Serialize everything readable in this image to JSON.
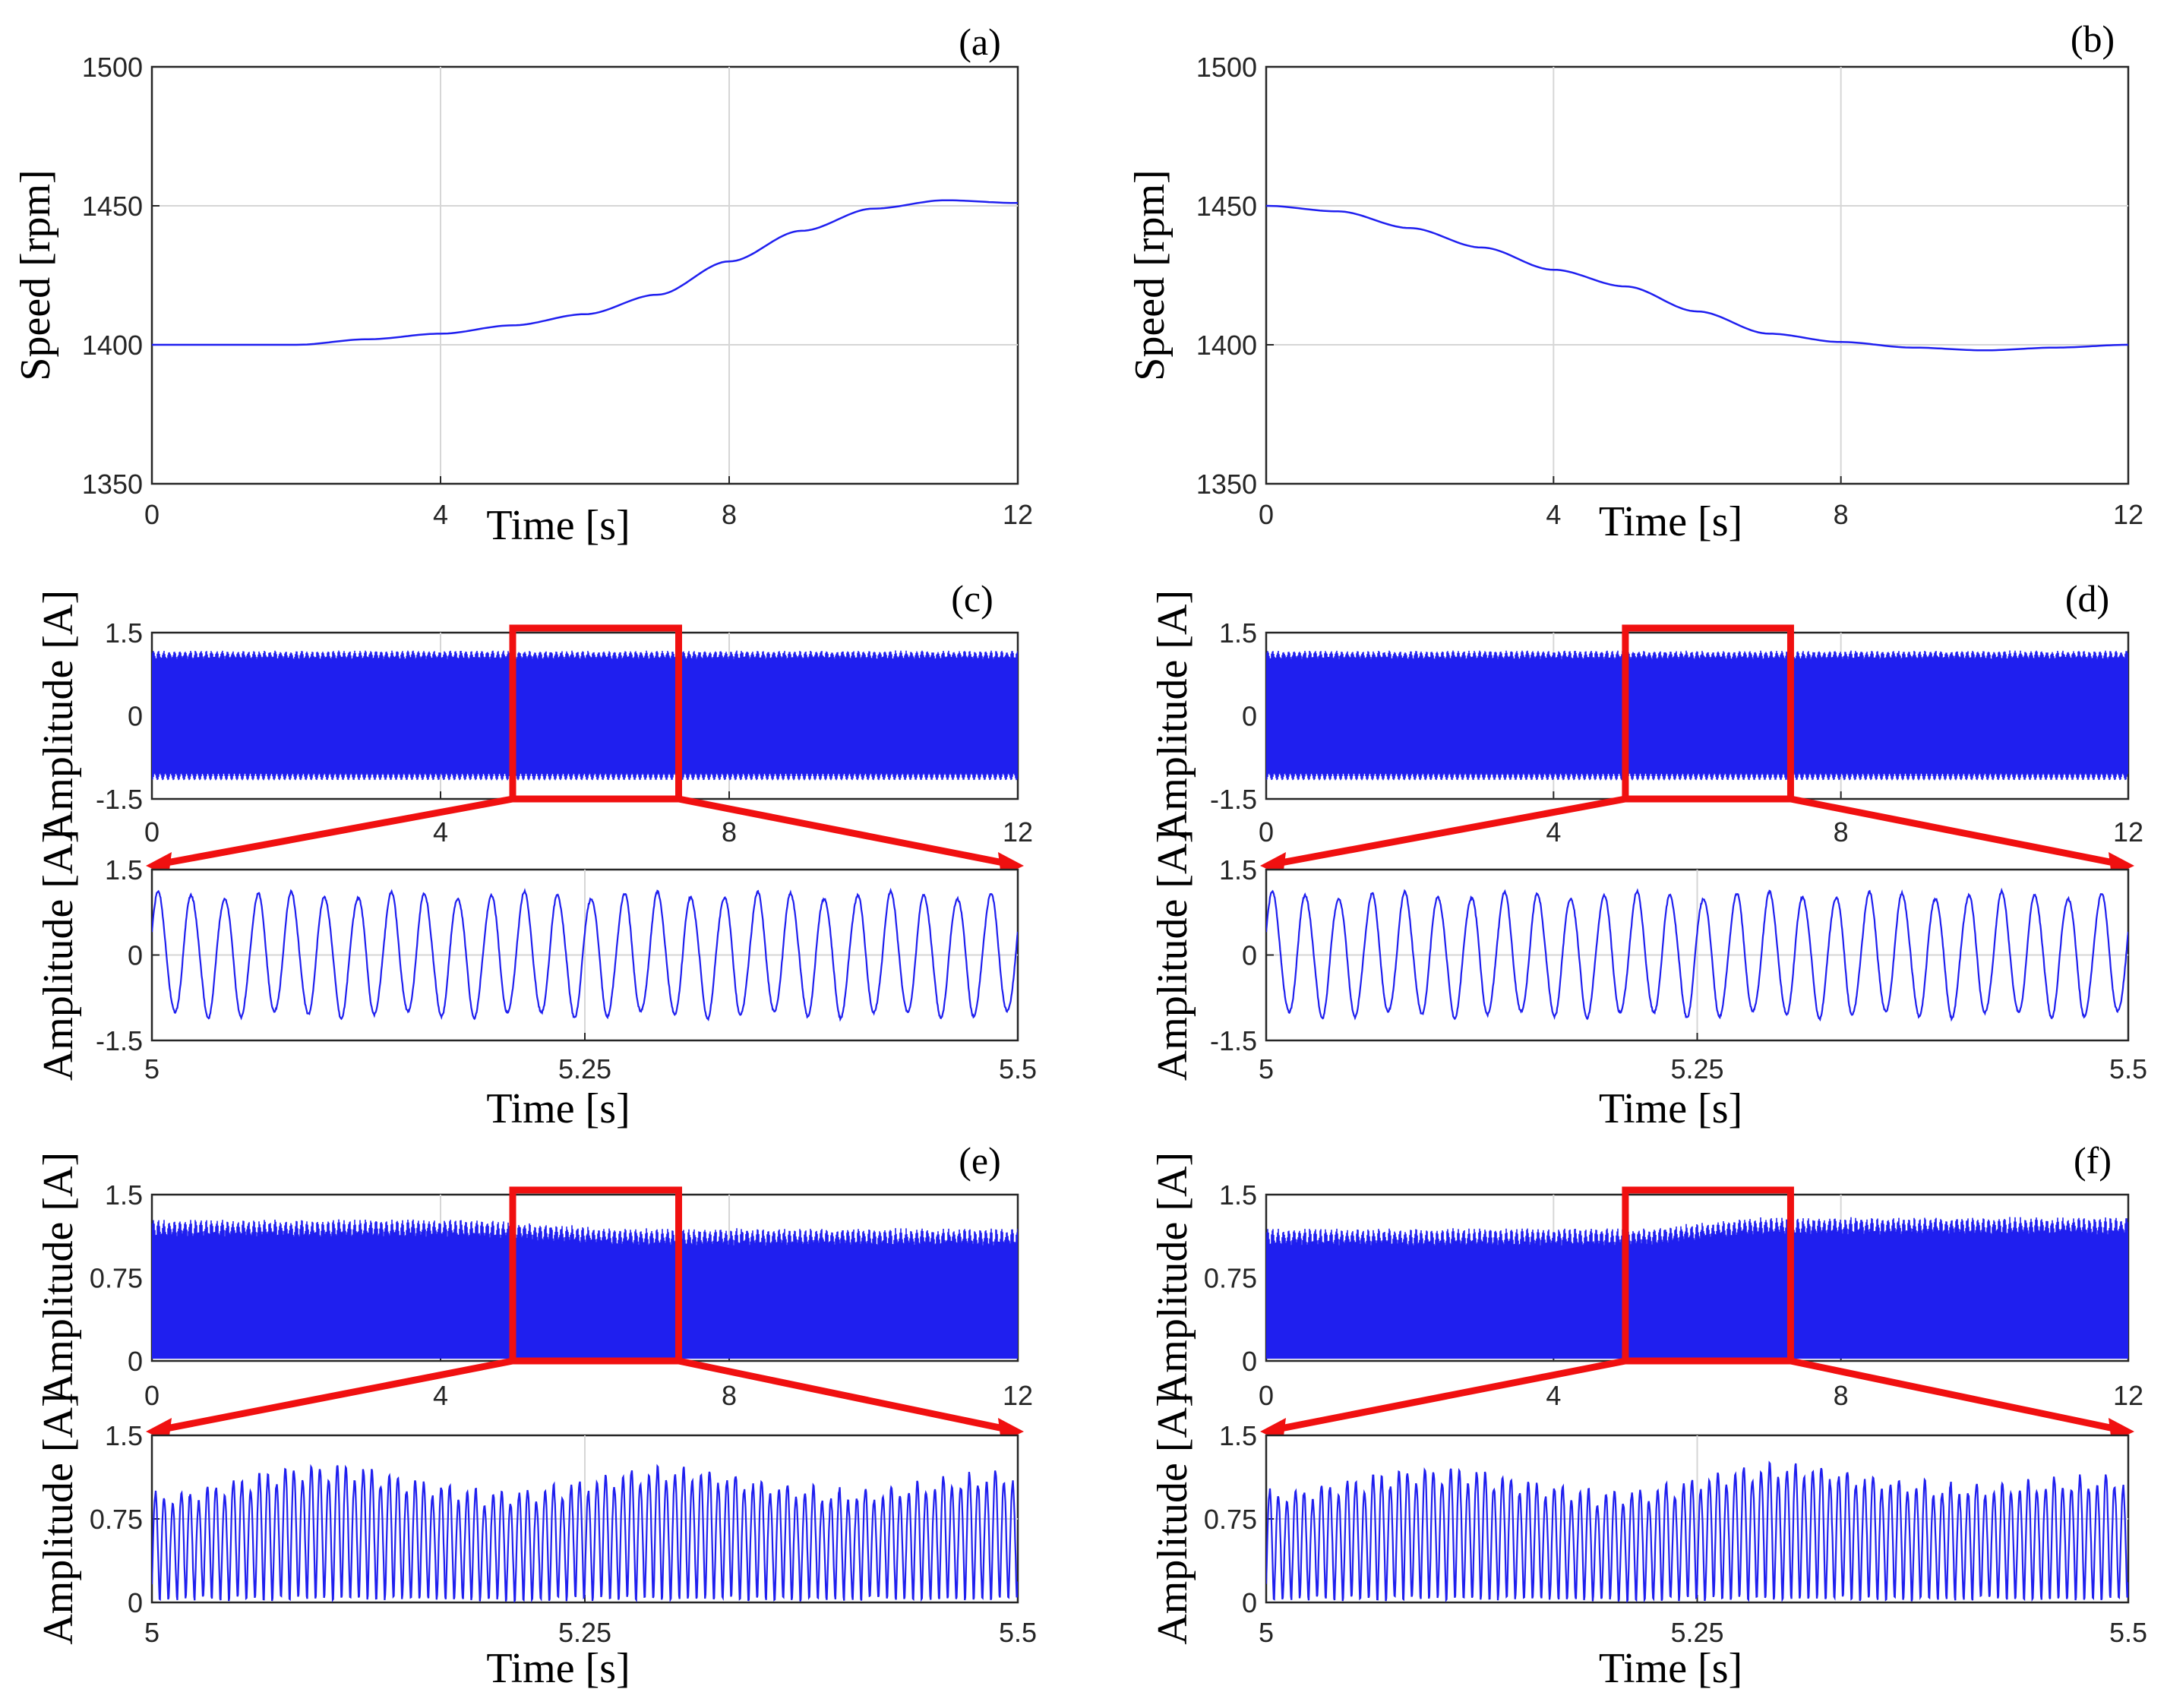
{
  "colors": {
    "series": "#1f1fef",
    "zoom": "#f01010",
    "grid": "#d6d6d6",
    "axis": "#262626"
  },
  "chart_data": [
    {
      "panel": "(a)",
      "type": "line",
      "xlabel": "Time [s]",
      "ylabel": "Speed [rpm]",
      "xlim": [
        0,
        12
      ],
      "ylim": [
        1350,
        1500
      ],
      "xticks": [
        "0",
        "4",
        "8",
        "12"
      ],
      "yticks": [
        "1350",
        "1400",
        "1450",
        "1500"
      ],
      "grid": true,
      "series": [
        {
          "x": [
            0,
            1,
            2,
            3,
            4,
            5,
            6,
            7,
            8,
            9,
            10,
            11,
            12
          ],
          "y": [
            1400,
            1400,
            1400,
            1402,
            1404,
            1407,
            1411,
            1418,
            1430,
            1441,
            1449,
            1452,
            1451
          ]
        }
      ]
    },
    {
      "panel": "(b)",
      "type": "line",
      "xlabel": "Time [s]",
      "ylabel": "Speed [rpm]",
      "xlim": [
        0,
        12
      ],
      "ylim": [
        1350,
        1500
      ],
      "xticks": [
        "0",
        "4",
        "8",
        "12"
      ],
      "yticks": [
        "1350",
        "1400",
        "1450",
        "1500"
      ],
      "grid": true,
      "series": [
        {
          "x": [
            0,
            1,
            2,
            3,
            4,
            5,
            6,
            7,
            8,
            9,
            10,
            11,
            12
          ],
          "y": [
            1450,
            1448,
            1442,
            1435,
            1427,
            1421,
            1412,
            1404,
            1401,
            1399,
            1398,
            1399,
            1400
          ]
        }
      ]
    },
    {
      "panel": "(c)",
      "type": "line",
      "signal": "bipolar",
      "xlabel": "",
      "ylabel": "Amplitude [A]",
      "xlim": [
        0,
        12
      ],
      "ylim": [
        -1.5,
        1.5
      ],
      "xticks": [
        "0",
        "4",
        "8",
        "12"
      ],
      "yticks": [
        "-1.5",
        "0",
        "1.5"
      ],
      "grid": true,
      "amplitude": 1.1,
      "frequency_hz": 50,
      "zoom_window": [
        5,
        7.3
      ],
      "series": [
        {
          "x": [
            0,
            12
          ],
          "envelope": [
            1.1,
            1.1
          ]
        }
      ]
    },
    {
      "panel": "",
      "type": "line",
      "signal": "bipolar",
      "xlabel": "Time [s]",
      "ylabel": "Amplitude [A]",
      "xlim": [
        5,
        5.5
      ],
      "ylim": [
        -1.5,
        1.5
      ],
      "xticks": [
        "5",
        "5.25",
        "5.5"
      ],
      "yticks": [
        "-1.5",
        "0",
        "1.5"
      ],
      "grid": true,
      "cycles": 26,
      "series": [
        {
          "x": [
            5,
            5.5
          ],
          "amplitude": [
            1.05,
            1.05
          ]
        }
      ]
    },
    {
      "panel": "(d)",
      "type": "line",
      "signal": "bipolar",
      "xlabel": "",
      "ylabel": "Amplitude [A]",
      "xlim": [
        0,
        12
      ],
      "ylim": [
        -1.5,
        1.5
      ],
      "xticks": [
        "0",
        "4",
        "8",
        "12"
      ],
      "yticks": [
        "-1.5",
        "0",
        "1.5"
      ],
      "grid": true,
      "amplitude": 1.1,
      "frequency_hz": 50,
      "zoom_window": [
        5,
        7.3
      ],
      "series": [
        {
          "x": [
            0,
            12
          ],
          "envelope": [
            1.1,
            1.1
          ]
        }
      ]
    },
    {
      "panel": "",
      "type": "line",
      "signal": "bipolar",
      "xlabel": "Time [s]",
      "ylabel": "Amplitude [A]",
      "xlim": [
        5,
        5.5
      ],
      "ylim": [
        -1.5,
        1.5
      ],
      "xticks": [
        "5",
        "5.25",
        "5.5"
      ],
      "yticks": [
        "-1.5",
        "0",
        "1.5"
      ],
      "grid": true,
      "cycles": 26,
      "series": [
        {
          "x": [
            5,
            5.5
          ],
          "amplitude": [
            1.05,
            1.05
          ]
        }
      ]
    },
    {
      "panel": "(e)",
      "type": "line",
      "signal": "rectified",
      "xlabel": "",
      "ylabel": "Amplitude [A]",
      "xlim": [
        0,
        12
      ],
      "ylim": [
        0,
        1.5
      ],
      "xticks": [
        "0",
        "4",
        "8",
        "12"
      ],
      "yticks": [
        "0",
        "0.75",
        "1.5"
      ],
      "grid": true,
      "frequency_hz": 100,
      "zoom_window": [
        5,
        7.3
      ],
      "series": [
        {
          "x": [
            0,
            4,
            7,
            12
          ],
          "envelope": [
            1.2,
            1.2,
            1.12,
            1.12
          ]
        }
      ]
    },
    {
      "panel": "",
      "type": "line",
      "signal": "rectified",
      "xlabel": "Time [s]",
      "ylabel": "Amplitude [A]",
      "xlim": [
        5,
        5.5
      ],
      "ylim": [
        0,
        1.5
      ],
      "xticks": [
        "5",
        "5.25",
        "5.5"
      ],
      "yticks": [
        "0",
        "0.75",
        "1.5"
      ],
      "grid": true,
      "cycles": 50,
      "series": [
        {
          "x": [
            5,
            5.1,
            5.2,
            5.3,
            5.4,
            5.5
          ],
          "amplitude": [
            0.93,
            1.18,
            0.95,
            1.15,
            0.95,
            1.12
          ]
        }
      ]
    },
    {
      "panel": "(f)",
      "type": "line",
      "signal": "rectified",
      "xlabel": "",
      "ylabel": "Amplitude [A]",
      "xlim": [
        0,
        12
      ],
      "ylim": [
        0,
        1.5
      ],
      "xticks": [
        "0",
        "4",
        "8",
        "12"
      ],
      "yticks": [
        "0",
        "0.75",
        "1.5"
      ],
      "grid": true,
      "frequency_hz": 100,
      "zoom_window": [
        5,
        7.3
      ],
      "series": [
        {
          "x": [
            0,
            5,
            7,
            12
          ],
          "envelope": [
            1.12,
            1.12,
            1.22,
            1.22
          ]
        }
      ]
    },
    {
      "panel": "",
      "type": "line",
      "signal": "rectified",
      "xlabel": "Time [s]",
      "ylabel": "Amplitude [A]",
      "xlim": [
        5,
        5.5
      ],
      "ylim": [
        0,
        1.5
      ],
      "xticks": [
        "5",
        "5.25",
        "5.5"
      ],
      "yticks": [
        "0",
        "0.75",
        "1.5"
      ],
      "grid": true,
      "cycles": 50,
      "series": [
        {
          "x": [
            5,
            5.1,
            5.2,
            5.3,
            5.4,
            5.5
          ],
          "amplitude": [
            0.95,
            1.15,
            0.95,
            1.18,
            1.0,
            1.08
          ]
        }
      ]
    }
  ]
}
